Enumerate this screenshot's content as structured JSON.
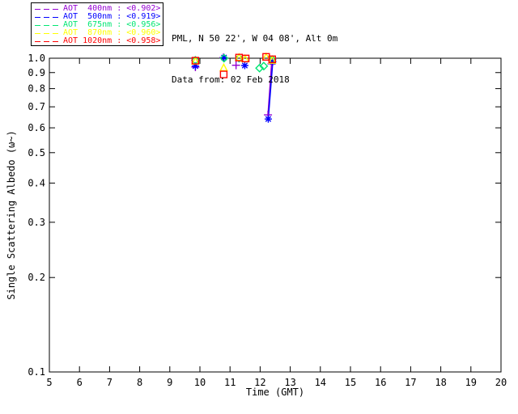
{
  "header": {
    "site": "PML, N 50 22', W 04 08', Alt 0m",
    "date": "Data from: 02 Feb 2018"
  },
  "legend": {
    "entries": [
      {
        "label": "AOT  400nm : <0.902>",
        "color": "#9400D3"
      },
      {
        "label": "AOT  500nm : <0.919>",
        "color": "#0000FF"
      },
      {
        "label": "AOT  675nm : <0.956>",
        "color": "#00E673"
      },
      {
        "label": "AOT  870nm : <0.960>",
        "color": "#FFFF00"
      },
      {
        "label": "AOT 1020nm : <0.958>",
        "color": "#FF0000"
      }
    ]
  },
  "chart_data": {
    "type": "scatter",
    "title": "",
    "xlabel": "Time (GMT)",
    "ylabel": "Single Scattering Albedo (ω~)",
    "xlim": [
      5,
      20
    ],
    "ylim": [
      0.1,
      1.0
    ],
    "y_scale": "log",
    "grid": false,
    "legend_position": "top-left",
    "x_ticks": [
      5,
      6,
      7,
      8,
      9,
      10,
      11,
      12,
      13,
      14,
      15,
      16,
      17,
      18,
      19,
      20
    ],
    "y_ticks": [
      1.0,
      0.9,
      0.8,
      0.7,
      0.6,
      0.5,
      0.4,
      0.3,
      0.2,
      0.1
    ],
    "y_tick_labels": [
      "1.0",
      "0.9",
      "0.8",
      "0.7",
      "0.6",
      "0.5",
      "0.4",
      "0.3",
      "0.2",
      "0.1"
    ],
    "series": [
      {
        "name": "AOT 400nm",
        "wavelength_nm": 400,
        "mean_ssa": "<0.902>",
        "color": "#9400D3",
        "marker": "plus",
        "points": [
          [
            9.85,
            0.937
          ],
          [
            10.78,
            1.005
          ],
          [
            11.2,
            0.95
          ],
          [
            12.38,
            0.96
          ],
          [
            12.26,
            0.66
          ]
        ],
        "line_segment": [
          [
            12.38,
            0.96
          ],
          [
            12.26,
            0.66
          ]
        ]
      },
      {
        "name": "AOT 500nm",
        "wavelength_nm": 500,
        "mean_ssa": "<0.919>",
        "color": "#0000FF",
        "marker": "asterisk",
        "points": [
          [
            9.85,
            0.944
          ],
          [
            10.8,
            1.005
          ],
          [
            11.49,
            0.948
          ],
          [
            12.42,
            0.975
          ],
          [
            12.27,
            0.64
          ]
        ],
        "line_segment": [
          [
            12.42,
            0.975
          ],
          [
            12.27,
            0.64
          ]
        ]
      },
      {
        "name": "AOT 675nm",
        "wavelength_nm": 675,
        "mean_ssa": "<0.956>",
        "color": "#00E673",
        "marker": "diamond",
        "points": [
          [
            9.85,
            0.985
          ],
          [
            10.8,
            1.0
          ],
          [
            11.3,
            1.0
          ],
          [
            11.98,
            0.93
          ],
          [
            12.12,
            0.944
          ],
          [
            12.4,
            0.99
          ]
        ]
      },
      {
        "name": "AOT 870nm",
        "wavelength_nm": 870,
        "mean_ssa": "<0.960>",
        "color": "#FFFF00",
        "marker": "triangle",
        "points": [
          [
            9.85,
            0.978
          ],
          [
            10.79,
            0.932
          ],
          [
            11.3,
            1.005
          ],
          [
            11.5,
            0.995
          ],
          [
            12.2,
            1.008
          ],
          [
            12.4,
            0.985
          ]
        ]
      },
      {
        "name": "AOT 1020nm",
        "wavelength_nm": 1020,
        "mean_ssa": "<0.958>",
        "color": "#FF0000",
        "marker": "square",
        "points": [
          [
            9.85,
            0.982
          ],
          [
            10.79,
            0.888
          ],
          [
            11.3,
            1.005
          ],
          [
            11.52,
            0.998
          ],
          [
            12.2,
            1.01
          ],
          [
            12.4,
            0.992
          ]
        ]
      }
    ]
  },
  "colors": {
    "axis": "#000000",
    "background": "#FFFFFF"
  }
}
